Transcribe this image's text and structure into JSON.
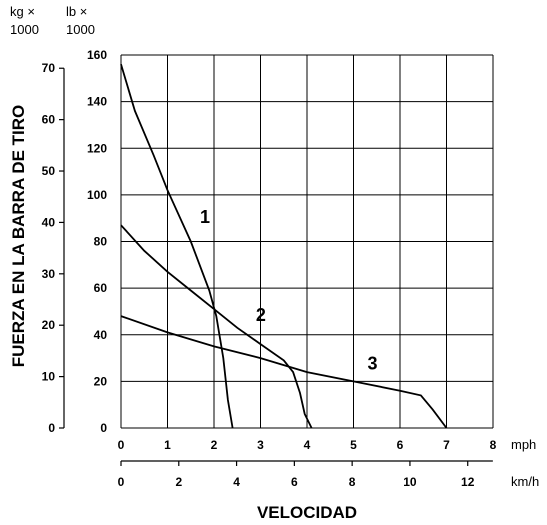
{
  "chart_data": {
    "type": "line",
    "ylabel": "FUERZA EN LA BARRA DE TIRO",
    "xlabel": "VELOCIDAD",
    "y_units": {
      "kg": "kg ×",
      "kg_factor": "1000",
      "lb": "lb ×",
      "lb_factor": "1000"
    },
    "x_units": {
      "mph": "mph",
      "kmh": "km/h"
    },
    "ylim_lb": [
      0,
      160
    ],
    "xlim_mph": [
      0,
      8
    ],
    "xlim_kmh": [
      0,
      12.87
    ],
    "yticks_lb": [
      "0",
      "20",
      "40",
      "60",
      "80",
      "100",
      "120",
      "140",
      "160"
    ],
    "yticks_kg": [
      "0",
      "10",
      "20",
      "30",
      "40",
      "50",
      "60",
      "70"
    ],
    "xticks_mph": [
      "0",
      "1",
      "2",
      "3",
      "4",
      "5",
      "6",
      "7",
      "8"
    ],
    "xticks_kmh": [
      "0",
      "2",
      "4",
      "6",
      "8",
      "10",
      "12"
    ],
    "grid": true,
    "series": [
      {
        "name": "1",
        "label_at": [
          1.7,
          88
        ],
        "points": [
          [
            0,
            156
          ],
          [
            0.3,
            136
          ],
          [
            0.7,
            117
          ],
          [
            1.0,
            102
          ],
          [
            1.5,
            80
          ],
          [
            1.9,
            59
          ],
          [
            2.05,
            48
          ],
          [
            2.2,
            30
          ],
          [
            2.3,
            12
          ],
          [
            2.4,
            0
          ]
        ]
      },
      {
        "name": "2",
        "label_at": [
          2.9,
          46
        ],
        "points": [
          [
            0,
            87
          ],
          [
            0.5,
            76
          ],
          [
            1.0,
            67
          ],
          [
            1.5,
            59
          ],
          [
            2.0,
            51
          ],
          [
            2.5,
            43
          ],
          [
            3.0,
            36
          ],
          [
            3.5,
            29
          ],
          [
            3.7,
            24
          ],
          [
            3.85,
            15
          ],
          [
            3.95,
            6
          ],
          [
            4.1,
            0
          ]
        ]
      },
      {
        "name": "3",
        "label_at": [
          5.3,
          25
        ],
        "points": [
          [
            0,
            48
          ],
          [
            1.0,
            41
          ],
          [
            2.0,
            35
          ],
          [
            3.0,
            30
          ],
          [
            4.0,
            24
          ],
          [
            5.0,
            20
          ],
          [
            6.0,
            16
          ],
          [
            6.45,
            14
          ],
          [
            6.7,
            8
          ],
          [
            7.0,
            0
          ]
        ]
      }
    ]
  }
}
